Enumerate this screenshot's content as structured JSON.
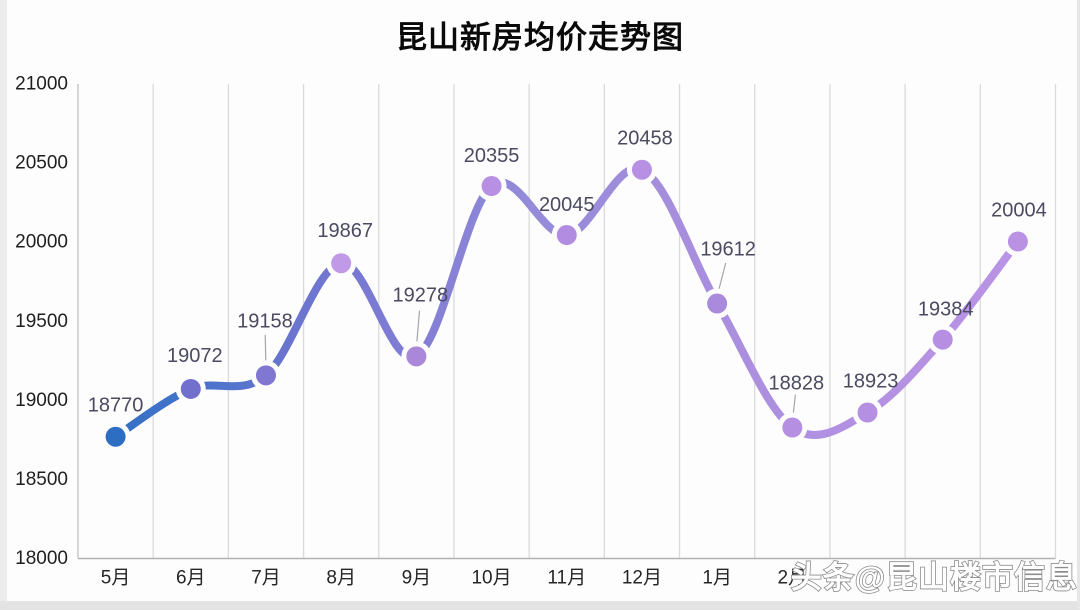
{
  "title": "昆山新房均价走势图",
  "watermark": "头条@昆山楼市信息",
  "chart_data": {
    "type": "line",
    "title": "昆山新房均价走势图",
    "categories": [
      "5月",
      "6月",
      "7月",
      "8月",
      "9月",
      "10月",
      "11月",
      "12月",
      "1月",
      "2月",
      "",
      "",
      ""
    ],
    "values": [
      18770,
      19072,
      19158,
      19867,
      19278,
      20355,
      20045,
      20458,
      19612,
      18828,
      18923,
      19384,
      20004
    ],
    "data_labels": [
      "18770",
      "19072",
      "19158",
      "19867",
      "19278",
      "20355",
      "20045",
      "20458",
      "19612",
      "18828",
      "18923",
      "19384",
      "20004"
    ],
    "xlabel": "",
    "ylabel": "",
    "ylim": [
      18000,
      21000
    ],
    "y_ticks": [
      18000,
      18500,
      19000,
      19500,
      20000,
      20500,
      21000
    ],
    "grid": "vertical-only",
    "legend": "none",
    "smooth": true,
    "line_gradient": [
      "#2d6ec2",
      "#4173c9",
      "#6b74ce",
      "#7e7bd3",
      "#938bd9",
      "#a78edd",
      "#b491e2",
      "#bb94e6"
    ],
    "marker_colors": [
      "#2d6ec2",
      "#7170cd",
      "#8077d2",
      "#c09ae6",
      "#ab87da",
      "#b890e3",
      "#b28ce0",
      "#b790e3",
      "#a98adc",
      "#b58fe2",
      "#b58fe1",
      "#b68fe2",
      "#b992e4"
    ],
    "label_color": "#4b4a60",
    "grid_color": "#dadada",
    "y_axis_color": "#c2c2c2",
    "x_axis_color": "#b3b3b3",
    "tick_label_color": "#262626",
    "leader_line_color": "#a6a6a6",
    "watermark_fill": "#ffffff",
    "watermark_outline": "#8d8d8d"
  }
}
